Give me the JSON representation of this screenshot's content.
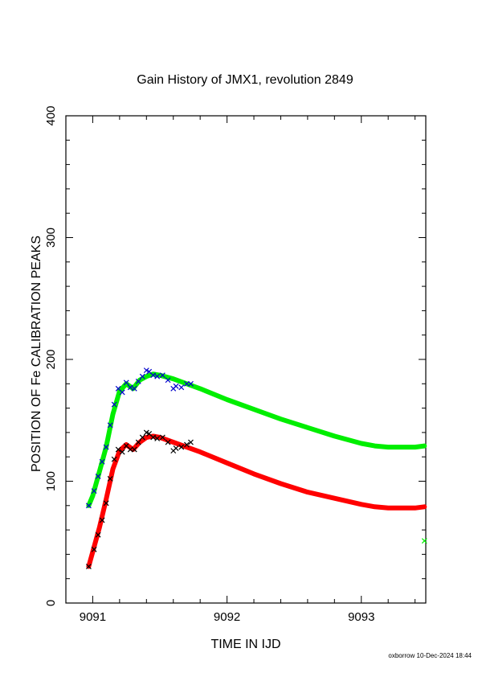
{
  "chart_data": {
    "type": "scatter",
    "title": "Gain History of JMX1, revolution 2849",
    "xlabel": "TIME IN IJD",
    "ylabel": "POSITION OF Fe CALIBRATION PEAKS",
    "xlim": [
      9090.8,
      9093.48
    ],
    "ylim": [
      0,
      400
    ],
    "x_ticks": [
      9091,
      9092,
      9093
    ],
    "y_ticks": [
      0,
      100,
      200,
      300,
      400
    ],
    "x_tick_labels": [
      "9091",
      "9092",
      "9093"
    ],
    "y_tick_labels": [
      "0",
      "100",
      "200",
      "300",
      "400"
    ],
    "grid": false,
    "footer": "oxborrow 10-Dec-2024 18:44",
    "series": [
      {
        "color": "#00ee00",
        "style": "thick-line",
        "x": [
          9090.97,
          9091.0,
          9091.05,
          9091.1,
          9091.15,
          9091.2,
          9091.25,
          9091.3,
          9091.35,
          9091.4,
          9091.45,
          9091.5,
          9091.6,
          9091.7,
          9091.8,
          9092.0,
          9092.2,
          9092.4,
          9092.6,
          9092.8,
          9093.0,
          9093.1,
          9093.2,
          9093.3,
          9093.4,
          9093.47
        ],
        "y": [
          80,
          88,
          108,
          128,
          155,
          174,
          180,
          176,
          183,
          186,
          188,
          187,
          184,
          180,
          176,
          167,
          159,
          151,
          144,
          137,
          131,
          129,
          128,
          128,
          128,
          129
        ]
      },
      {
        "color": "#ff0000",
        "style": "thick-line",
        "x": [
          9090.97,
          9091.0,
          9091.05,
          9091.1,
          9091.15,
          9091.2,
          9091.25,
          9091.3,
          9091.35,
          9091.4,
          9091.45,
          9091.5,
          9091.6,
          9091.7,
          9091.8,
          9092.0,
          9092.2,
          9092.4,
          9092.6,
          9092.8,
          9093.0,
          9093.1,
          9093.2,
          9093.3,
          9093.4,
          9093.47
        ],
        "y": [
          30,
          42,
          62,
          85,
          110,
          125,
          130,
          126,
          132,
          136,
          137,
          136,
          132,
          128,
          124,
          115,
          106,
          98,
          91,
          86,
          81,
          79,
          78,
          78,
          78,
          79
        ]
      },
      {
        "color": "#0000cc",
        "style": "x-markers",
        "x": [
          9090.97,
          9091.01,
          9091.04,
          9091.07,
          9091.1,
          9091.13,
          9091.16,
          9091.19,
          9091.22,
          9091.25,
          9091.28,
          9091.31,
          9091.34,
          9091.37,
          9091.4,
          9091.42,
          9091.45,
          9091.48,
          9091.52,
          9091.56,
          9091.6,
          9091.62,
          9091.66,
          9091.7,
          9091.73
        ],
        "y": [
          80,
          92,
          104,
          116,
          128,
          146,
          163,
          176,
          173,
          181,
          177,
          176,
          182,
          186,
          191,
          190,
          187,
          186,
          187,
          183,
          176,
          178,
          177,
          180,
          180
        ]
      },
      {
        "color": "#000000",
        "style": "x-markers",
        "x": [
          9090.97,
          9091.01,
          9091.04,
          9091.07,
          9091.1,
          9091.13,
          9091.16,
          9091.19,
          9091.22,
          9091.25,
          9091.28,
          9091.31,
          9091.34,
          9091.37,
          9091.4,
          9091.42,
          9091.45,
          9091.48,
          9091.52,
          9091.56,
          9091.6,
          9091.62,
          9091.66,
          9091.7,
          9091.73
        ],
        "y": [
          30,
          44,
          56,
          68,
          82,
          102,
          118,
          126,
          124,
          129,
          126,
          126,
          132,
          136,
          140,
          139,
          136,
          135,
          136,
          132,
          125,
          127,
          128,
          130,
          132
        ]
      },
      {
        "color": "#00ee00",
        "style": "x-markers",
        "x": [
          9093.47
        ],
        "y": [
          51
        ]
      }
    ]
  }
}
